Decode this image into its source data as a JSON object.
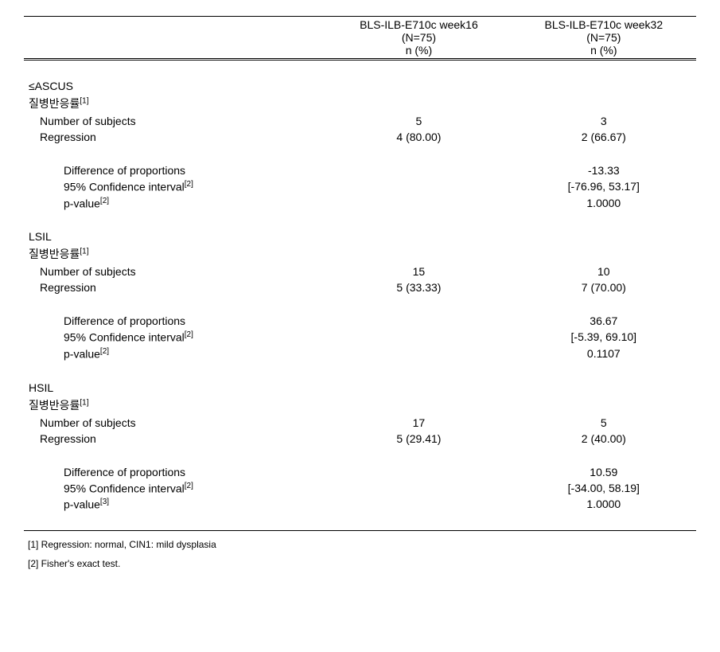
{
  "header": {
    "col1_line1": "BLS-ILB-E710c week16",
    "col1_line2": "(N=75)",
    "col1_line3": "n (%)",
    "col2_line1": "BLS-ILB-E710c week32",
    "col2_line2": "(N=75)",
    "col2_line3": "n (%)"
  },
  "labels": {
    "disease_rate": "질병반응률",
    "sup1": "[1]",
    "sup2": "[2]",
    "sup3": "[3]",
    "num_subjects": "Number of subjects",
    "regression": "Regression",
    "diff_prop": "Difference of proportions",
    "ci": "95% Confidence interval",
    "pvalue": "p-value"
  },
  "sections": {
    "ascus": {
      "title": "≤ASCUS",
      "num_subjects_w16": "5",
      "num_subjects_w32": "3",
      "regression_w16": "4 (80.00)",
      "regression_w32": "2 (66.67)",
      "diff": "-13.33",
      "ci": "[-76.96, 53.17]",
      "pvalue": "1.0000",
      "pvalue_sup": "[2]"
    },
    "lsil": {
      "title": "LSIL",
      "num_subjects_w16": "15",
      "num_subjects_w32": "10",
      "regression_w16": "5 (33.33)",
      "regression_w32": "7 (70.00)",
      "diff": "36.67",
      "ci": "[-5.39, 69.10]",
      "pvalue": "0.1107",
      "pvalue_sup": "[2]"
    },
    "hsil": {
      "title": "HSIL",
      "num_subjects_w16": "17",
      "num_subjects_w32": "5",
      "regression_w16": "5 (29.41)",
      "regression_w32": "2 (40.00)",
      "diff": "10.59",
      "ci": "[-34.00, 58.19]",
      "pvalue": "1.0000",
      "pvalue_sup": "[3]"
    }
  },
  "footnotes": {
    "f1": "[1] Regression: normal, CIN1: mild dysplasia",
    "f2": "[2] Fisher's exact test."
  },
  "style": {
    "background": "#ffffff",
    "text_color": "#000000",
    "border_color": "#000000",
    "font_size_body": 14,
    "font_size_footnote": 12
  }
}
